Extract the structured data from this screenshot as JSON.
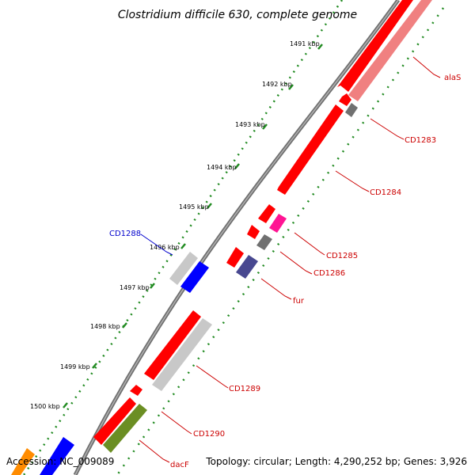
{
  "title": "Clostridium difficile 630, complete genome",
  "footer": {
    "accession": "Accession: NC_009089",
    "summary": "Topology: circular; Length: 4,290,252 bp; Genes: 3,926"
  },
  "ticks": [
    "1491 kbp",
    "1492 kbp",
    "1493 kbp",
    "1494 kbp",
    "1495 kbp",
    "1496 kbp",
    "1497 kbp",
    "1498 kbp",
    "1499 kbp",
    "1500 kbp"
  ],
  "genes": [
    {
      "name": "alaS",
      "color": "#cc0000"
    },
    {
      "name": "CD1283",
      "color": "#cc0000"
    },
    {
      "name": "CD1284",
      "color": "#cc0000"
    },
    {
      "name": "CD1285",
      "color": "#cc0000"
    },
    {
      "name": "CD1286",
      "color": "#cc0000"
    },
    {
      "name": "fur",
      "color": "#cc0000"
    },
    {
      "name": "CD1288",
      "color": "#0000cc"
    },
    {
      "name": "CD1289",
      "color": "#cc0000"
    },
    {
      "name": "CD1290",
      "color": "#cc0000"
    },
    {
      "name": "dacF",
      "color": "#cc0000"
    }
  ],
  "colors": {
    "backbone": "#808080",
    "tick_track": "#228b22",
    "cds_forward": "#ff0000",
    "cds_light": "#f08080",
    "cds_gray": "#c0c0c0",
    "cds_dark_gray": "#707070",
    "cds_pink": "#ff1493",
    "cds_slate": "#484890",
    "cds_blue": "#0000ff",
    "cds_olive": "#6b8e23",
    "cds_orange": "#ff8c00"
  }
}
